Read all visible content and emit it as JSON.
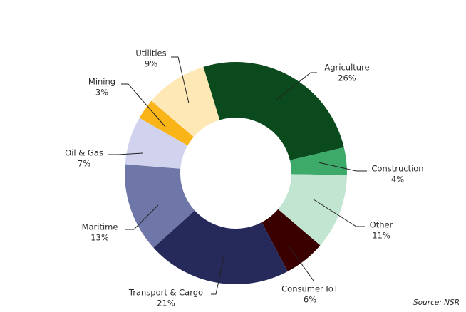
{
  "chart_data": {
    "type": "donut",
    "categories": [
      "Agriculture",
      "Construction",
      "Other",
      "Consumer IoT",
      "Transport & Cargo",
      "Maritime",
      "Oil & Gas",
      "Mining",
      "Utilities"
    ],
    "values": [
      26,
      4,
      11,
      6,
      21,
      13,
      7,
      3,
      9
    ],
    "value_labels": [
      "26%",
      "4%",
      "11%",
      "6%",
      "21%",
      "13%",
      "7%",
      "3%",
      "9%"
    ],
    "colors": [
      "#0b4a1c",
      "#3daa6a",
      "#c2e5d2",
      "#3a0000",
      "#252a5a",
      "#6e77a8",
      "#d0d2ee",
      "#f9b418",
      "#fde8b6"
    ],
    "source": "Source: NSR"
  }
}
